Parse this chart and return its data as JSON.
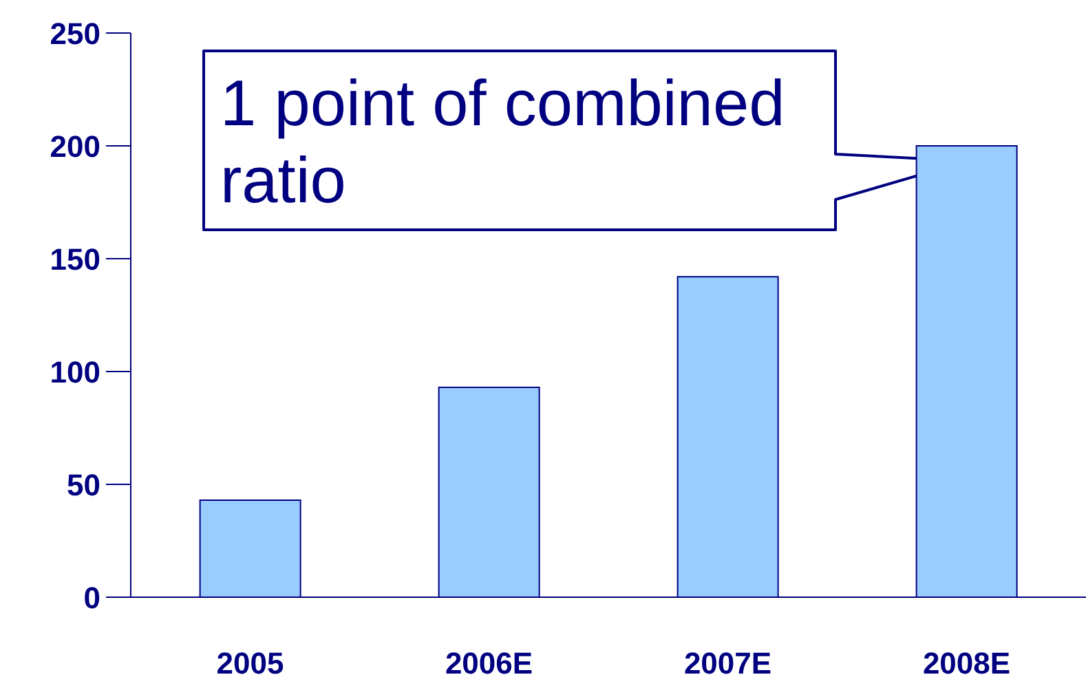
{
  "chart_data": {
    "type": "bar",
    "categories": [
      "2005",
      "2006E",
      "2007E",
      "2008E"
    ],
    "values": [
      43,
      93,
      142,
      200
    ],
    "color": "#99ccff",
    "ylim": [
      0,
      250
    ],
    "yticks": [
      0,
      50,
      100,
      150,
      200,
      250
    ],
    "grid": false,
    "annotations": [
      "1 point of combined ratio"
    ]
  }
}
